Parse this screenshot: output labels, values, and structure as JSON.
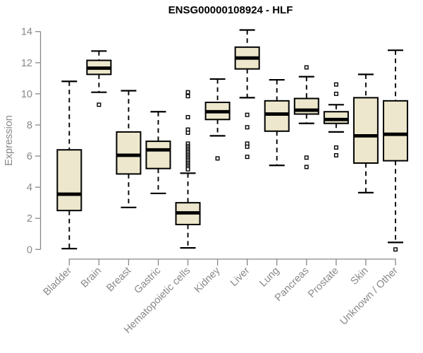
{
  "chart_data": {
    "type": "box",
    "title": "ENSG00000108924 - HLF",
    "xlabel": "",
    "ylabel": "Expression",
    "ylim": [
      0,
      14
    ],
    "yticks": [
      0,
      2,
      4,
      6,
      8,
      10,
      12,
      14
    ],
    "grid": false,
    "legend": null,
    "categories": [
      "Bladder",
      "Brain",
      "Breast",
      "Gastric",
      "Hematopoietic cells",
      "Kidney",
      "Liver",
      "Lung",
      "Pancreas",
      "Prostate",
      "Skin",
      "Unknown / Other"
    ],
    "series": [
      {
        "label": "Bladder",
        "whislo": 0.05,
        "q1": 2.5,
        "med": 3.55,
        "q3": 6.4,
        "whishi": 10.8,
        "outliers": []
      },
      {
        "label": "Brain",
        "whislo": 10.1,
        "q1": 11.25,
        "med": 11.65,
        "q3": 12.15,
        "whishi": 12.75,
        "outliers": [
          9.3
        ]
      },
      {
        "label": "Breast",
        "whislo": 2.7,
        "q1": 4.85,
        "med": 6.05,
        "q3": 7.55,
        "whishi": 10.2,
        "outliers": []
      },
      {
        "label": "Gastric",
        "whislo": 3.6,
        "q1": 5.2,
        "med": 6.4,
        "q3": 6.95,
        "whishi": 8.85,
        "outliers": []
      },
      {
        "label": "Hematopoietic cells",
        "whislo": 0.1,
        "q1": 1.6,
        "med": 2.35,
        "q3": 3.0,
        "whishi": 4.9,
        "outliers": [
          10.1,
          9.85,
          8.5,
          7.7,
          7.5,
          6.8,
          6.65,
          6.55,
          6.45,
          6.35,
          6.25,
          6.15,
          6.05,
          5.95,
          5.85,
          5.75,
          5.65,
          5.55,
          5.45,
          5.35,
          5.25,
          5.15
        ]
      },
      {
        "label": "Kidney",
        "whislo": 7.3,
        "q1": 8.35,
        "med": 8.85,
        "q3": 9.45,
        "whishi": 10.95,
        "outliers": [
          5.85
        ]
      },
      {
        "label": "Liver",
        "whislo": 9.75,
        "q1": 11.6,
        "med": 12.3,
        "q3": 13.0,
        "whishi": 14.1,
        "outliers": [
          8.65,
          7.85,
          6.8,
          6.6,
          5.95
        ]
      },
      {
        "label": "Lung",
        "whislo": 5.4,
        "q1": 7.6,
        "med": 8.7,
        "q3": 9.55,
        "whishi": 10.9,
        "outliers": []
      },
      {
        "label": "Pancreas",
        "whislo": 8.1,
        "q1": 8.7,
        "med": 8.95,
        "q3": 9.7,
        "whishi": 11.1,
        "outliers": [
          11.7,
          5.9,
          5.3
        ]
      },
      {
        "label": "Prostate",
        "whislo": 7.55,
        "q1": 8.1,
        "med": 8.35,
        "q3": 8.85,
        "whishi": 9.3,
        "outliers": [
          10.6,
          10.0,
          6.55,
          6.05
        ]
      },
      {
        "label": "Skin",
        "whislo": 3.65,
        "q1": 5.55,
        "med": 7.3,
        "q3": 9.75,
        "whishi": 11.25,
        "outliers": []
      },
      {
        "label": "Unknown / Other",
        "whislo": 0.45,
        "q1": 5.7,
        "med": 7.4,
        "q3": 9.55,
        "whishi": 12.8,
        "outliers": [
          0.0
        ]
      }
    ],
    "colors": {
      "box_fill": "#EDE8CD",
      "box_border": "#000000",
      "median": "#000000",
      "whisker": "#000000",
      "outlier": "#000000",
      "axis": "#888888",
      "title": "#000000",
      "background": "#FFFFFF"
    }
  }
}
